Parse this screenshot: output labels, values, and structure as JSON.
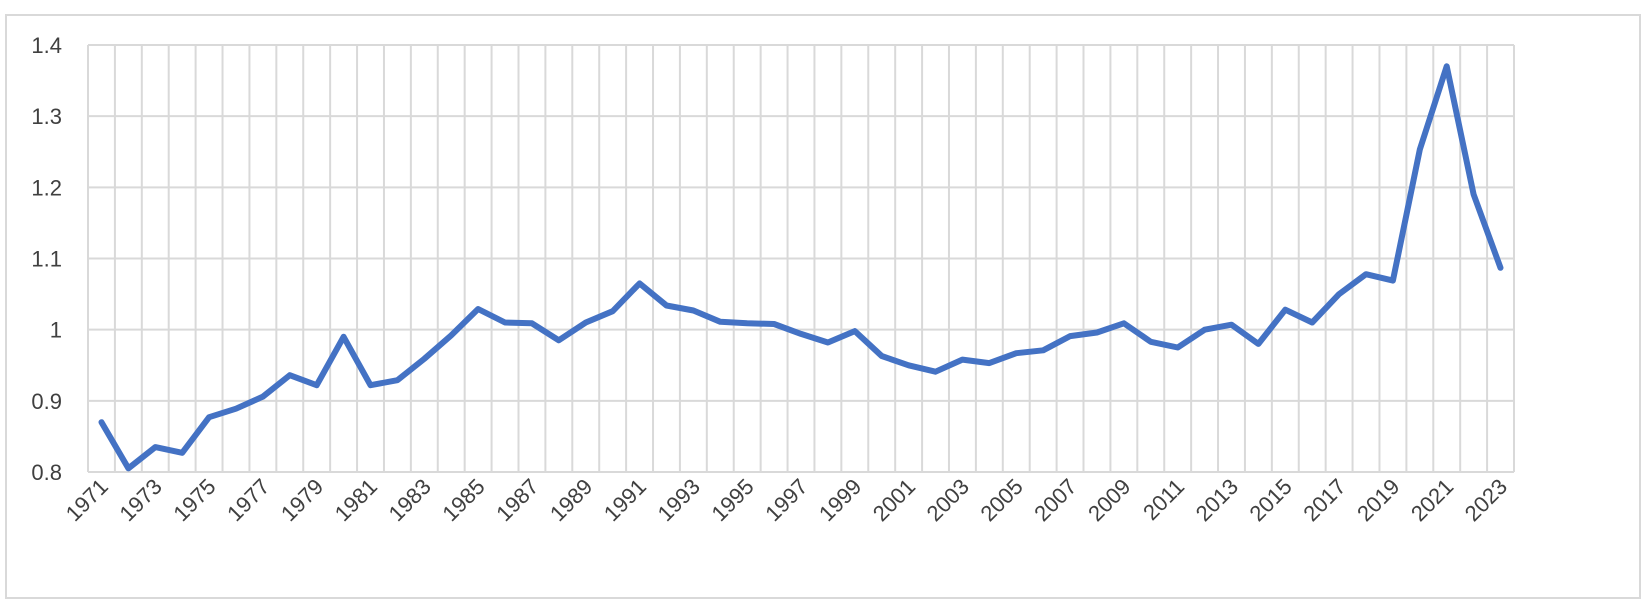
{
  "chart_data": {
    "type": "line",
    "title": "",
    "xlabel": "",
    "ylabel": "",
    "ylim": [
      0.8,
      1.4
    ],
    "yticks": [
      "0.8",
      "0.9",
      "1",
      "1.1",
      "1.2",
      "1.3",
      "1.4"
    ],
    "x": [
      1971,
      1972,
      1973,
      1974,
      1975,
      1976,
      1977,
      1978,
      1979,
      1980,
      1981,
      1982,
      1983,
      1984,
      1985,
      1986,
      1987,
      1988,
      1989,
      1990,
      1991,
      1992,
      1993,
      1994,
      1995,
      1996,
      1997,
      1998,
      1999,
      2000,
      2001,
      2002,
      2003,
      2004,
      2005,
      2006,
      2007,
      2008,
      2009,
      2010,
      2011,
      2012,
      2013,
      2014,
      2015,
      2016,
      2017,
      2018,
      2019,
      2020,
      2021,
      2022,
      2023
    ],
    "xtick_labels": [
      "1971",
      "1973",
      "1975",
      "1977",
      "1979",
      "1981",
      "1983",
      "1985",
      "1987",
      "1989",
      "1991",
      "1993",
      "1995",
      "1997",
      "1999",
      "2001",
      "2003",
      "2005",
      "2007",
      "2009",
      "2011",
      "2013",
      "2015",
      "2017",
      "2019",
      "2021",
      "2023"
    ],
    "series": [
      {
        "color": "#4472c4",
        "values": [
          0.87,
          0.805,
          0.835,
          0.827,
          0.877,
          0.889,
          0.906,
          0.936,
          0.922,
          0.99,
          0.922,
          0.929,
          0.959,
          0.992,
          1.029,
          1.01,
          1.009,
          0.985,
          1.01,
          1.026,
          1.065,
          1.034,
          1.027,
          1.011,
          1.009,
          1.008,
          0.994,
          0.982,
          0.998,
          0.963,
          0.95,
          0.941,
          0.958,
          0.953,
          0.967,
          0.971,
          0.991,
          0.996,
          1.009,
          0.983,
          0.975,
          1.0,
          1.007,
          0.98,
          1.028,
          1.01,
          1.05,
          1.078,
          1.069,
          1.253,
          1.37,
          1.19,
          1.087
        ]
      }
    ],
    "grid": true,
    "legend": "none"
  }
}
